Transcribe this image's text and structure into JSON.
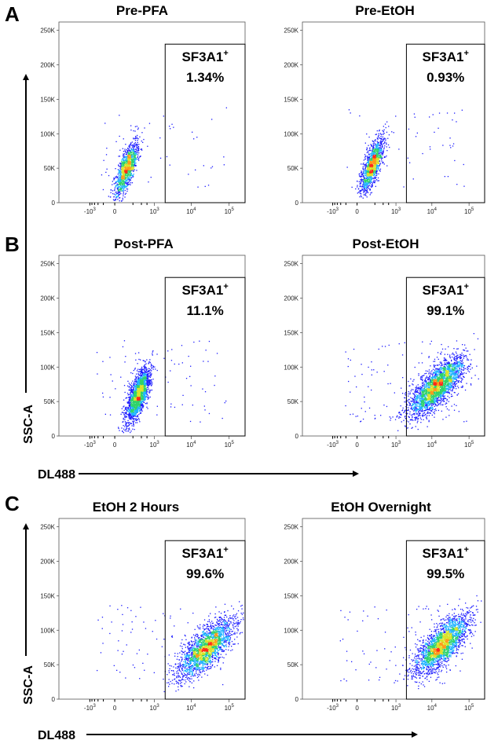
{
  "figure": {
    "panels": [
      {
        "letter": "A",
        "titles": [
          "Pre-PFA",
          "Pre-EtOH"
        ]
      },
      {
        "letter": "B",
        "titles": [
          "Post-PFA",
          "Post-EtOH"
        ]
      },
      {
        "letter": "C",
        "titles": [
          "EtOH 2 Hours",
          "EtOH Overnight"
        ]
      }
    ],
    "x_axis_label": "DL488",
    "y_axis_label": "SSC-A",
    "gate_label": "SF3A1",
    "gate_superscript": "+"
  },
  "chart_data": [
    {
      "type": "scatter",
      "panel": "A",
      "title": "Pre-PFA",
      "xlabel": "DL488",
      "ylabel": "SSC-A",
      "x_scale": "biexponential",
      "x_ticks": [
        "-10^3",
        "0",
        "10^3",
        "10^4",
        "10^5"
      ],
      "y_ticks": [
        "0",
        "50K",
        "100K",
        "150K",
        "200K",
        "250K"
      ],
      "ylim": [
        0,
        262144
      ],
      "gate": {
        "name": "SF3A1+",
        "percent": "1.34%",
        "x_range": [
          2000,
          262144
        ],
        "y_range": [
          0,
          230000
        ]
      },
      "population": {
        "x_center": 100,
        "y_center": 50000,
        "events": 1200,
        "elongated": true
      }
    },
    {
      "type": "scatter",
      "panel": "A",
      "title": "Pre-EtOH",
      "xlabel": "DL488",
      "ylabel": "SSC-A",
      "x_scale": "biexponential",
      "x_ticks": [
        "-10^3",
        "0",
        "10^3",
        "10^4",
        "10^5"
      ],
      "y_ticks": [
        "0",
        "50K",
        "100K",
        "150K",
        "200K",
        "250K"
      ],
      "ylim": [
        0,
        262144
      ],
      "gate": {
        "name": "SF3A1+",
        "percent": "0.93%",
        "x_range": [
          2000,
          262144
        ],
        "y_range": [
          0,
          230000
        ]
      },
      "population": {
        "x_center": 150,
        "y_center": 55000,
        "events": 1300,
        "elongated": true
      }
    },
    {
      "type": "scatter",
      "panel": "B",
      "title": "Post-PFA",
      "xlabel": "DL488",
      "ylabel": "SSC-A",
      "x_scale": "biexponential",
      "x_ticks": [
        "-10^3",
        "0",
        "10^3",
        "10^4",
        "10^5"
      ],
      "y_ticks": [
        "0",
        "50K",
        "100K",
        "150K",
        "200K",
        "250K"
      ],
      "ylim": [
        0,
        262144
      ],
      "gate": {
        "name": "SF3A1+",
        "percent": "11.1%",
        "x_range": [
          2000,
          262144
        ],
        "y_range": [
          0,
          230000
        ]
      },
      "population": {
        "x_center": 300,
        "y_center": 60000,
        "events": 2000,
        "elongated": true
      }
    },
    {
      "type": "scatter",
      "panel": "B",
      "title": "Post-EtOH",
      "xlabel": "DL488",
      "ylabel": "SSC-A",
      "x_scale": "biexponential",
      "x_ticks": [
        "-10^3",
        "0",
        "10^3",
        "10^4",
        "10^5"
      ],
      "y_ticks": [
        "0",
        "50K",
        "100K",
        "150K",
        "200K",
        "250K"
      ],
      "ylim": [
        0,
        262144
      ],
      "gate": {
        "name": "SF3A1+",
        "percent": "99.1%",
        "x_range": [
          2000,
          262144
        ],
        "y_range": [
          0,
          230000
        ]
      },
      "population": {
        "x_center": 13000,
        "y_center": 72000,
        "events": 2600,
        "elongated": false
      }
    },
    {
      "type": "scatter",
      "panel": "C",
      "title": "EtOH 2 Hours",
      "xlabel": "DL488",
      "ylabel": "SSC-A",
      "x_scale": "biexponential",
      "x_ticks": [
        "-10^3",
        "0",
        "10^3",
        "10^4",
        "10^5"
      ],
      "y_ticks": [
        "0",
        "50K",
        "100K",
        "150K",
        "200K",
        "250K"
      ],
      "ylim": [
        0,
        262144
      ],
      "gate": {
        "name": "SF3A1+",
        "percent": "99.6%",
        "x_range": [
          2000,
          262144
        ],
        "y_range": [
          0,
          230000
        ]
      },
      "population": {
        "x_center": 25000,
        "y_center": 75000,
        "events": 2200,
        "elongated": false
      }
    },
    {
      "type": "scatter",
      "panel": "C",
      "title": "EtOH Overnight",
      "xlabel": "DL488",
      "ylabel": "SSC-A",
      "x_scale": "biexponential",
      "x_ticks": [
        "-10^3",
        "0",
        "10^3",
        "10^4",
        "10^5"
      ],
      "y_ticks": [
        "0",
        "50K",
        "100K",
        "150K",
        "200K",
        "250K"
      ],
      "ylim": [
        0,
        262144
      ],
      "gate": {
        "name": "SF3A1+",
        "percent": "99.5%",
        "x_range": [
          2000,
          262144
        ],
        "y_range": [
          0,
          230000
        ]
      },
      "population": {
        "x_center": 18000,
        "y_center": 80000,
        "events": 2400,
        "elongated": false
      }
    }
  ]
}
